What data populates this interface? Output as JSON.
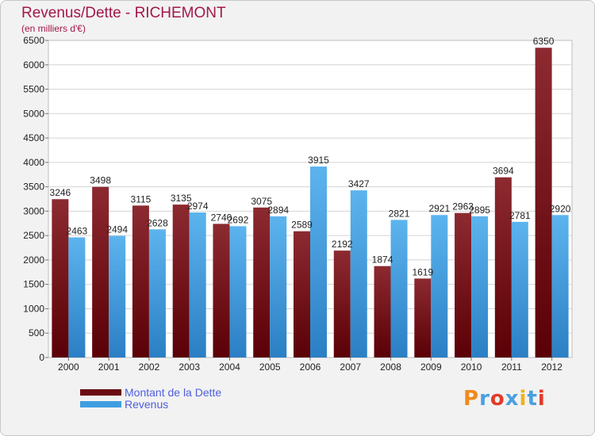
{
  "header": {
    "title": "Revenus/Dette - RICHEMONT",
    "subtitle": "(en milliers d'€)"
  },
  "legend": {
    "items": [
      {
        "label": "Montant de la Dette",
        "color": "#6b0d12"
      },
      {
        "label": "Revenus",
        "color": "#3f9ee0"
      }
    ]
  },
  "logo": {
    "text": "Proxiti",
    "colors": [
      "#f08a1c",
      "#4aa0e0",
      "#e33a2a",
      "#4aa0e0",
      "#f0b11c",
      "#4aa0e0",
      "#e33a2a"
    ]
  },
  "chart_data": {
    "type": "bar",
    "title": "Revenus/Dette - RICHEMONT",
    "ylabel": "",
    "categories": [
      "2000",
      "2001",
      "2002",
      "2003",
      "2004",
      "2005",
      "2006",
      "2007",
      "2008",
      "2009",
      "2010",
      "2011",
      "2012"
    ],
    "series": [
      {
        "name": "Montant de la Dette",
        "color": "#6b0d12",
        "values": [
          3246,
          3498,
          3115,
          3135,
          2740,
          3075,
          2589,
          2192,
          1874,
          1619,
          2963,
          3694,
          6350
        ]
      },
      {
        "name": "Revenus",
        "color": "#3f9ee0",
        "values": [
          2463,
          2494,
          2628,
          2974,
          2692,
          2894,
          3915,
          3427,
          2821,
          2921,
          2895,
          2781,
          2920
        ]
      }
    ],
    "ylim": [
      0,
      6500
    ],
    "yticks": [
      0,
      500,
      1000,
      1500,
      2000,
      2500,
      3000,
      3500,
      4000,
      4500,
      5000,
      5500,
      6000,
      6500
    ],
    "grid": true,
    "legend_position": "bottom-left"
  }
}
